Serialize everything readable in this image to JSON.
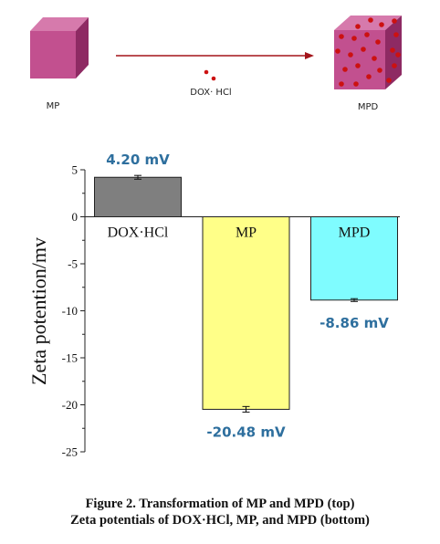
{
  "scheme": {
    "left_label": "MP",
    "reagent_label": "DOX· HCl",
    "right_label": "MPD",
    "colors": {
      "cube": "#c2508f",
      "cube_dark": "#8e2a63",
      "arrow": "#a3141a",
      "dot": "#cc1111"
    }
  },
  "chart_data": {
    "type": "bar",
    "categories": [
      "DOX·HCl",
      "MP",
      "MPD"
    ],
    "values": [
      4.2,
      -20.48,
      -8.86
    ],
    "errors": [
      0.2,
      0.3,
      0.15
    ],
    "data_labels": [
      "4.20 mV",
      "-20.48 mV",
      "-8.86 mV"
    ],
    "colors": [
      "#7f7f7f",
      "#ffff88",
      "#7ffcff"
    ],
    "label_color": "#2e6f9e",
    "ylabel": "Zeta potention/mv",
    "ylim": [
      -25,
      5
    ],
    "yticks": [
      5,
      0,
      -5,
      -10,
      -15,
      -20,
      -25
    ],
    "ytick_labels": [
      "5",
      "0",
      "-5",
      "-10",
      "-15",
      "-20",
      "-25"
    ],
    "grid": false
  },
  "caption": {
    "line1": "Figure 2. Transformation of MP and MPD (top)",
    "line2": "Zeta potentials of DOX·HCl, MP, and MPD (bottom)"
  }
}
